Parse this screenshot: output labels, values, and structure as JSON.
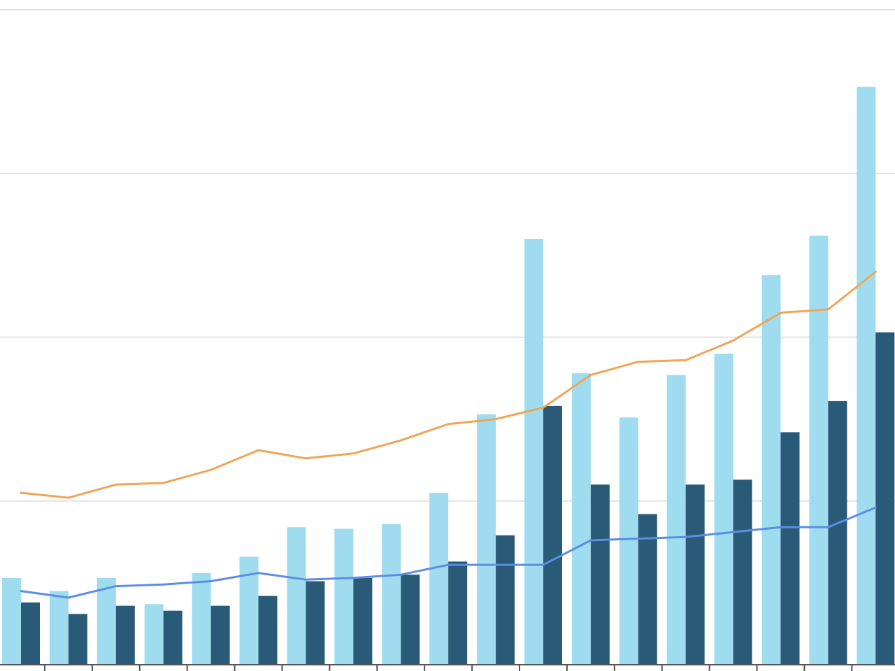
{
  "chart_data": {
    "type": "bar",
    "categories": [
      "",
      "",
      "",
      "",
      "",
      "",
      "",
      "",
      "",
      "",
      "",
      "",
      "",
      "",
      "",
      "",
      "",
      "",
      ""
    ],
    "ylim": [
      0,
      400
    ],
    "yticks": [
      0,
      100,
      200,
      300,
      400
    ],
    "grid": true,
    "legend": "none",
    "series": [
      {
        "type": "bar",
        "color": "#a0dcef",
        "values": [
          53,
          45,
          53,
          37,
          56,
          66,
          84,
          83,
          86,
          105,
          153,
          260,
          178,
          151,
          177,
          190,
          238,
          262,
          353
        ]
      },
      {
        "type": "bar",
        "color": "#295a78",
        "values": [
          38,
          31,
          36,
          33,
          36,
          42,
          51,
          53,
          55,
          63,
          79,
          158,
          110,
          92,
          110,
          113,
          142,
          161,
          203
        ]
      },
      {
        "type": "line",
        "color": "#f0a556",
        "values": [
          105,
          102,
          110,
          111,
          119,
          131,
          126,
          129,
          137,
          147,
          150,
          157,
          177,
          185,
          186,
          198,
          215,
          217,
          240
        ]
      },
      {
        "type": "line",
        "color": "#5a8ee6",
        "values": [
          45,
          41,
          48,
          49,
          51,
          56,
          52,
          53,
          55,
          61,
          61,
          61,
          76,
          77,
          78,
          81,
          84,
          84,
          96
        ]
      }
    ]
  }
}
